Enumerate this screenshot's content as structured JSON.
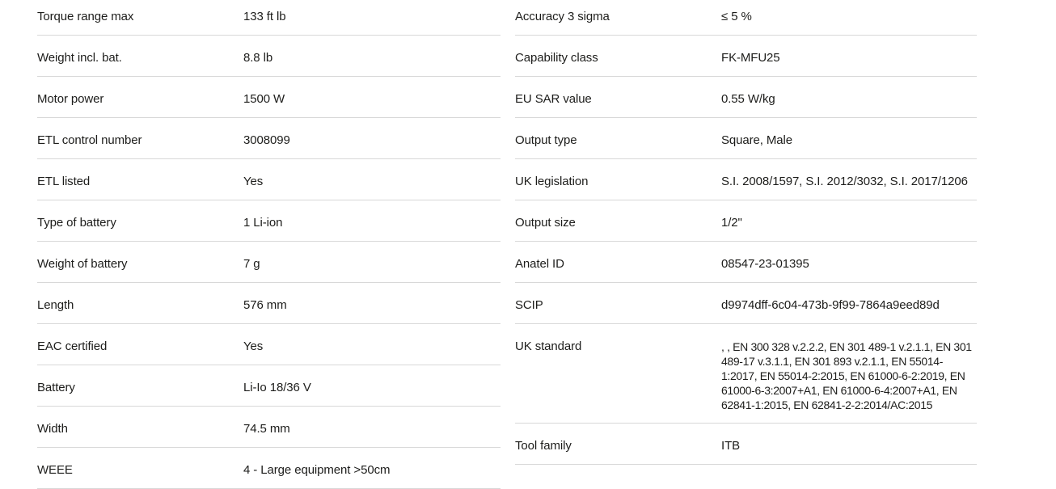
{
  "theme": {
    "background": "#ffffff",
    "text_color": "#1d1d1b",
    "divider_color": "#d8d8d8"
  },
  "spec_tables": {
    "left": {
      "rows": [
        {
          "label": "Torque range max",
          "value": "133 ft lb"
        },
        {
          "label": "Weight incl. bat.",
          "value": "8.8 lb"
        },
        {
          "label": "Motor power",
          "value": "1500 W"
        },
        {
          "label": "ETL control number",
          "value": "3008099"
        },
        {
          "label": "ETL listed",
          "value": "Yes"
        },
        {
          "label": "Type of battery",
          "value": "1 Li-ion"
        },
        {
          "label": "Weight of battery",
          "value": "7 g"
        },
        {
          "label": "Length",
          "value": "576 mm"
        },
        {
          "label": "EAC certified",
          "value": "Yes"
        },
        {
          "label": "Battery",
          "value": "Li-Io 18/36 V"
        },
        {
          "label": "Width",
          "value": "74.5 mm"
        },
        {
          "label": "WEEE",
          "value": "4 - Large equipment >50cm"
        }
      ]
    },
    "right": {
      "rows": [
        {
          "label": "Accuracy 3 sigma",
          "value": "≤ 5 %"
        },
        {
          "label": "Capability class",
          "value": "FK-MFU25"
        },
        {
          "label": "EU SAR value",
          "value": "0.55 W/kg"
        },
        {
          "label": "Output type",
          "value": "Square, Male"
        },
        {
          "label": "UK legislation",
          "value": "S.I. 2008/1597, S.I. 2012/3032, S.I. 2017/1206"
        },
        {
          "label": "Output size",
          "value": "1/2\""
        },
        {
          "label": "Anatel ID",
          "value": "08547-23-01395"
        },
        {
          "label": "SCIP",
          "value": "d9974dff-6c04-473b-9f99-7864a9eed89d"
        },
        {
          "label": "UK standard",
          "value": ", , EN 300 328 v.2.2.2, EN 301 489-1 v.2.1.1, EN 301 489-17 v.3.1.1, EN 301 893 v.2.1.1, EN 55014-1:2017, EN 55014-2:2015, EN 61000-6-2:2019, EN 61000-6-3:2007+A1, EN 61000-6-4:2007+A1, EN 62841-1:2015, EN 62841-2-2:2014/AC:2015"
        },
        {
          "label": "Tool family",
          "value": "ITB"
        }
      ]
    }
  }
}
